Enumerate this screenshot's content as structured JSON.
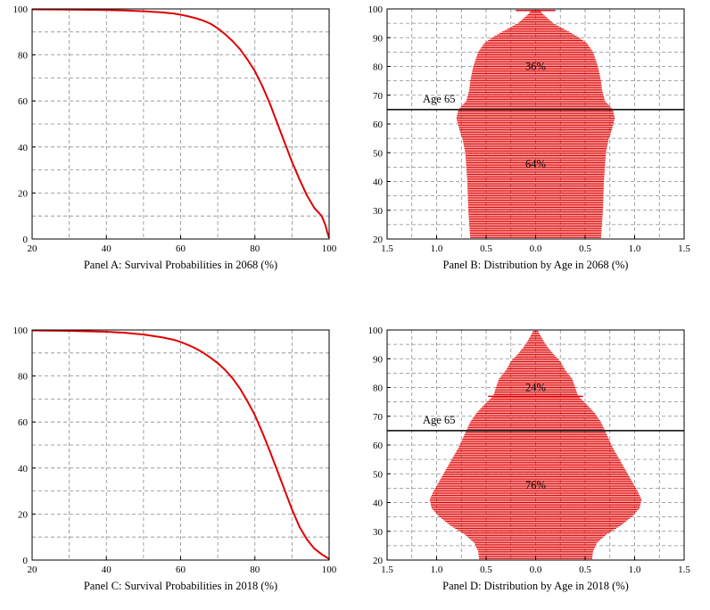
{
  "colors": {
    "series": "#e00000",
    "grid": "#8a8a8a",
    "axis": "#000000"
  },
  "chart_data": [
    {
      "id": "A",
      "type": "line",
      "title": "Panel A: Survival Probabilities in 2068 (%)",
      "xlim": [
        20,
        100
      ],
      "ylim": [
        0,
        100
      ],
      "xticks": [
        "20",
        "40",
        "60",
        "80",
        "100"
      ],
      "yticks": [
        "0",
        "20",
        "40",
        "60",
        "80",
        "100"
      ],
      "grid": true,
      "x": [
        20,
        30,
        40,
        45,
        50,
        55,
        58,
        60,
        62,
        64,
        66,
        68,
        70,
        72,
        74,
        76,
        78,
        80,
        82,
        84,
        86,
        88,
        90,
        92,
        94,
        96,
        98,
        99,
        99.5,
        100
      ],
      "y": [
        99.8,
        99.7,
        99.5,
        99.3,
        99.0,
        98.5,
        98.0,
        97.5,
        96.8,
        96.0,
        95.0,
        93.6,
        91.6,
        89.0,
        86.0,
        82.5,
        78.0,
        73.0,
        66.5,
        59.0,
        50.5,
        42.0,
        33.5,
        26.0,
        19.0,
        13.5,
        10.0,
        6.0,
        3.0,
        0.5
      ]
    },
    {
      "id": "B",
      "type": "bar",
      "orientation": "horizontal-pyramid",
      "title": "Panel B: Distribution by Age in 2068 (%)",
      "xlim": [
        -1.5,
        1.5
      ],
      "ylim": [
        20,
        100
      ],
      "xticks": [
        "1.5",
        "1.0",
        "0.5",
        "0.0",
        "0.5",
        "1.0",
        "1.5"
      ],
      "yticks": [
        "20",
        "30",
        "40",
        "50",
        "60",
        "70",
        "80",
        "90",
        "100"
      ],
      "grid": true,
      "threshold_age": 65,
      "threshold_label": "Age 65",
      "share_above_label": "36%",
      "share_below_label": "64%",
      "profile_ages": [
        20,
        30,
        40,
        50,
        55,
        58,
        62,
        65,
        68,
        72,
        75,
        80,
        85,
        88,
        90,
        92,
        95,
        98,
        100
      ],
      "profile_values": [
        0.66,
        0.68,
        0.69,
        0.71,
        0.74,
        0.77,
        0.8,
        0.78,
        0.7,
        0.67,
        0.66,
        0.63,
        0.58,
        0.52,
        0.44,
        0.34,
        0.18,
        0.08,
        0.03
      ],
      "spike_age": 99.5,
      "spike_value": 0.2
    },
    {
      "id": "C",
      "type": "line",
      "title": "Panel C: Survival Probabilities in 2018 (%)",
      "xlim": [
        20,
        100
      ],
      "ylim": [
        0,
        100
      ],
      "xticks": [
        "20",
        "40",
        "60",
        "80",
        "100"
      ],
      "yticks": [
        "0",
        "20",
        "40",
        "60",
        "80",
        "100"
      ],
      "grid": true,
      "x": [
        20,
        30,
        40,
        45,
        50,
        55,
        58,
        60,
        62,
        64,
        66,
        68,
        70,
        72,
        74,
        76,
        78,
        80,
        82,
        84,
        86,
        88,
        90,
        92,
        94,
        96,
        98,
        99,
        100
      ],
      "y": [
        99.8,
        99.6,
        99.2,
        98.8,
        98.0,
        96.8,
        95.8,
        94.8,
        93.5,
        92.0,
        90.2,
        88.0,
        85.6,
        82.6,
        79.0,
        74.5,
        69.0,
        63.0,
        55.5,
        47.5,
        39.0,
        30.5,
        22.0,
        14.5,
        9.0,
        5.0,
        2.5,
        1.5,
        0.5
      ]
    },
    {
      "id": "D",
      "type": "bar",
      "orientation": "horizontal-pyramid",
      "title": "Panel D: Distribution by Age in 2018 (%)",
      "xlim": [
        -1.5,
        1.5
      ],
      "ylim": [
        20,
        100
      ],
      "xticks": [
        "1.5",
        "1.0",
        "0.5",
        "0.0",
        "0.5",
        "1.0",
        "1.5"
      ],
      "yticks": [
        "20",
        "30",
        "40",
        "50",
        "60",
        "70",
        "80",
        "90",
        "100"
      ],
      "grid": true,
      "threshold_age": 65,
      "threshold_label": "Age 65",
      "share_above_label": "24%",
      "share_below_label": "76%",
      "profile_ages": [
        20,
        23,
        26,
        29,
        32,
        35,
        38,
        41,
        44,
        47,
        50,
        53,
        56,
        59,
        62,
        65,
        68,
        71,
        74,
        77,
        80,
        83,
        86,
        89,
        92,
        95,
        98,
        100
      ],
      "profile_values": [
        0.57,
        0.58,
        0.62,
        0.72,
        0.86,
        0.97,
        1.05,
        1.07,
        1.03,
        0.98,
        0.93,
        0.88,
        0.83,
        0.78,
        0.74,
        0.7,
        0.66,
        0.6,
        0.52,
        0.43,
        0.4,
        0.37,
        0.3,
        0.25,
        0.17,
        0.1,
        0.05,
        0.02
      ],
      "spike_age": 77,
      "spike_value": 0.48
    }
  ]
}
